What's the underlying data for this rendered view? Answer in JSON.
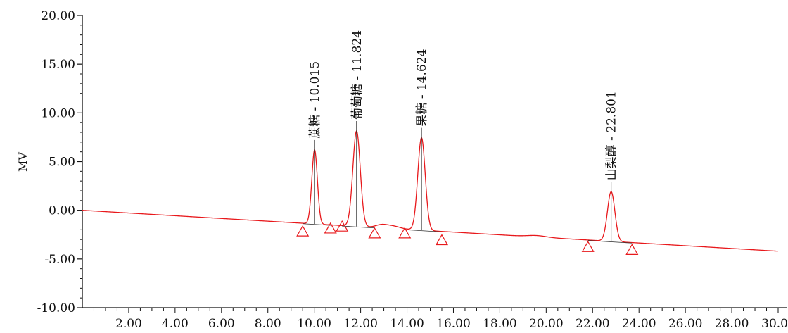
{
  "chart_data": {
    "type": "line",
    "ylabel": "MV",
    "xlabel": "",
    "xlim": [
      0,
      30.0
    ],
    "ylim": [
      -10,
      20
    ],
    "x_ticks": [
      {
        "value": 2,
        "label": "2.00"
      },
      {
        "value": 4,
        "label": "4.00"
      },
      {
        "value": 6,
        "label": "6.00"
      },
      {
        "value": 8,
        "label": "8.00"
      },
      {
        "value": 10,
        "label": "10.00"
      },
      {
        "value": 12,
        "label": "12.00"
      },
      {
        "value": 14,
        "label": "14.00"
      },
      {
        "value": 16,
        "label": "16.00"
      },
      {
        "value": 18,
        "label": "18.00"
      },
      {
        "value": 20,
        "label": "20.00"
      },
      {
        "value": 22,
        "label": "22.00"
      },
      {
        "value": 24,
        "label": "24.00"
      },
      {
        "value": 26,
        "label": "26.00"
      },
      {
        "value": 28,
        "label": "28.00"
      },
      {
        "value": 30,
        "label": "30.0"
      }
    ],
    "y_ticks": [
      {
        "value": 20,
        "label": "20.00"
      },
      {
        "value": 15,
        "label": "15.00"
      },
      {
        "value": 10,
        "label": "10.00"
      },
      {
        "value": 5,
        "label": "5.00"
      },
      {
        "value": 0,
        "label": "0.00"
      },
      {
        "value": -5,
        "label": "-5.00"
      },
      {
        "value": -10,
        "label": "-10.00"
      }
    ],
    "baseline": {
      "x0": 0,
      "y0": 0.0,
      "x1": 30.0,
      "y1": -4.2
    },
    "peaks": [
      {
        "label": "蔗糖 - 10.015",
        "rt": 10.015,
        "height": 7.6,
        "width": 0.12
      },
      {
        "label": "葡萄糖 - 11.824",
        "rt": 11.824,
        "height": 9.8,
        "width": 0.16
      },
      {
        "label": "果糖 - 14.624",
        "rt": 14.624,
        "height": 9.5,
        "width": 0.16
      },
      {
        "label": "山梨醇 - 22.801",
        "rt": 22.801,
        "height": 5.1,
        "width": 0.16
      }
    ],
    "markers": [
      {
        "x": 9.5,
        "y": -2.2
      },
      {
        "x": 10.7,
        "y": -1.9
      },
      {
        "x": 11.2,
        "y": -1.7
      },
      {
        "x": 12.6,
        "y": -2.4
      },
      {
        "x": 13.9,
        "y": -2.4
      },
      {
        "x": 15.5,
        "y": -3.1
      },
      {
        "x": 21.8,
        "y": -3.8
      },
      {
        "x": 23.7,
        "y": -4.1
      }
    ],
    "colors": {
      "trace": "#e8191c",
      "axis": "#111111"
    }
  }
}
